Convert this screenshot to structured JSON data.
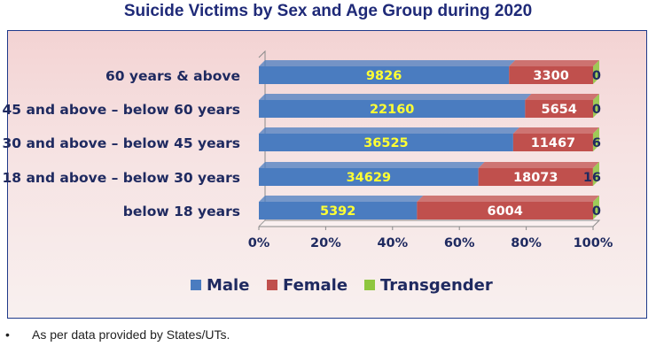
{
  "chart_data": {
    "type": "bar",
    "orientation": "horizontal",
    "stacking": "percent",
    "title": "Suicide Victims by Sex and Age Group during 2020",
    "categories": [
      "60 years & above",
      "45 and above – below 60 years",
      "30 and above – below 45 years",
      "18 and above – below 30 years",
      "below 18 years"
    ],
    "series": [
      {
        "name": "Male",
        "values": [
          9826,
          22160,
          36525,
          34629,
          5392
        ],
        "color": "#4a7cc0",
        "label_color": "#ffff33"
      },
      {
        "name": "Female",
        "values": [
          3300,
          5654,
          11467,
          18073,
          6004
        ],
        "color": "#c0504d",
        "label_color": "#ffffff"
      },
      {
        "name": "Transgender",
        "values": [
          0,
          0,
          6,
          16,
          0
        ],
        "color": "#8ec63f",
        "label_color": "#1f2a60"
      }
    ],
    "x_ticks": [
      "0%",
      "20%",
      "40%",
      "60%",
      "80%",
      "100%"
    ],
    "xlim": [
      0,
      100
    ],
    "legend_position": "bottom",
    "grid": false
  },
  "footnote": {
    "bullet": "•",
    "text": "As per data provided by States/UTs."
  }
}
